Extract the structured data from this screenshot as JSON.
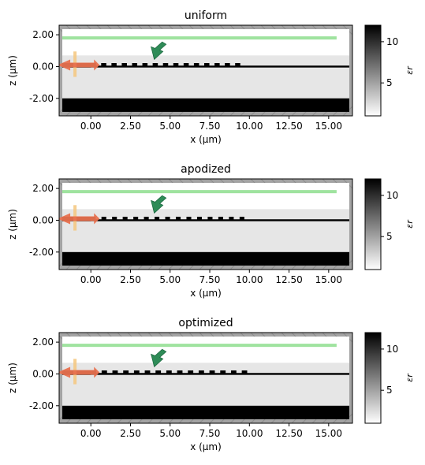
{
  "colors": {
    "pml": "#a3a3a3",
    "pml_hatch": "#8c8c8c",
    "cladding": "#e6e6e6",
    "top_region": "#ffffff",
    "substrate": "#000000",
    "grating": "#000000",
    "source_beam": "#9fe39f",
    "source_arrow": "#2e8b57",
    "mode_arrow": "#e8714f",
    "monitor": "#f5c77e"
  },
  "chart_data": [
    {
      "type": "heatmap",
      "title": "uniform",
      "xlabel": "x (µm)",
      "ylabel": "z (µm)",
      "xlim": [
        -2.0,
        16.5
      ],
      "ylim": [
        -3.1,
        2.6
      ],
      "x_ticks": [
        "0.00",
        "2.50",
        "5.00",
        "7.50",
        "10.00",
        "12.50",
        "15.00"
      ],
      "x_tick_values": [
        0,
        2.5,
        5,
        7.5,
        10,
        12.5,
        15
      ],
      "y_ticks": [
        "2.00",
        "0.00",
        "-2.00"
      ],
      "y_tick_values": [
        2,
        0,
        -2
      ],
      "colorbar": {
        "label": "εr",
        "ticks": [
          "5",
          "10"
        ],
        "tick_values": [
          5,
          10
        ],
        "range": [
          1,
          12
        ]
      },
      "grating": {
        "x_start": 0.0,
        "num_teeth": 15,
        "period": 0.65,
        "duty_cycle": 0.5
      }
    },
    {
      "type": "heatmap",
      "title": "apodized",
      "xlabel": "x (µm)",
      "ylabel": "z (µm)",
      "xlim": [
        -2.0,
        16.5
      ],
      "ylim": [
        -3.1,
        2.6
      ],
      "x_ticks": [
        "0.00",
        "2.50",
        "5.00",
        "7.50",
        "10.00",
        "12.50",
        "15.00"
      ],
      "x_tick_values": [
        0,
        2.5,
        5,
        7.5,
        10,
        12.5,
        15
      ],
      "y_ticks": [
        "2.00",
        "0.00",
        "-2.00"
      ],
      "y_tick_values": [
        2,
        0,
        -2
      ],
      "colorbar": {
        "label": "εr",
        "ticks": [
          "5",
          "10"
        ],
        "tick_values": [
          5,
          10
        ],
        "range": [
          1,
          12
        ]
      },
      "grating": {
        "x_start": 0.0,
        "num_teeth": 15,
        "period": 0.67,
        "duty_cycle": 0.45
      }
    },
    {
      "type": "heatmap",
      "title": "optimized",
      "xlabel": "x (µm)",
      "ylabel": "z (µm)",
      "xlim": [
        -2.0,
        16.5
      ],
      "ylim": [
        -3.1,
        2.6
      ],
      "x_ticks": [
        "0.00",
        "2.50",
        "5.00",
        "7.50",
        "10.00",
        "12.50",
        "15.00"
      ],
      "x_tick_values": [
        0,
        2.5,
        5,
        7.5,
        10,
        12.5,
        15
      ],
      "y_ticks": [
        "2.00",
        "0.00",
        "-2.00"
      ],
      "y_tick_values": [
        2,
        0,
        -2
      ],
      "colorbar": {
        "label": "εr",
        "ticks": [
          "5",
          "10"
        ],
        "tick_values": [
          5,
          10
        ],
        "range": [
          1,
          12
        ]
      },
      "grating": {
        "x_start": 0.0,
        "num_teeth": 15,
        "period": 0.68,
        "duty_cycle": 0.5
      }
    }
  ]
}
